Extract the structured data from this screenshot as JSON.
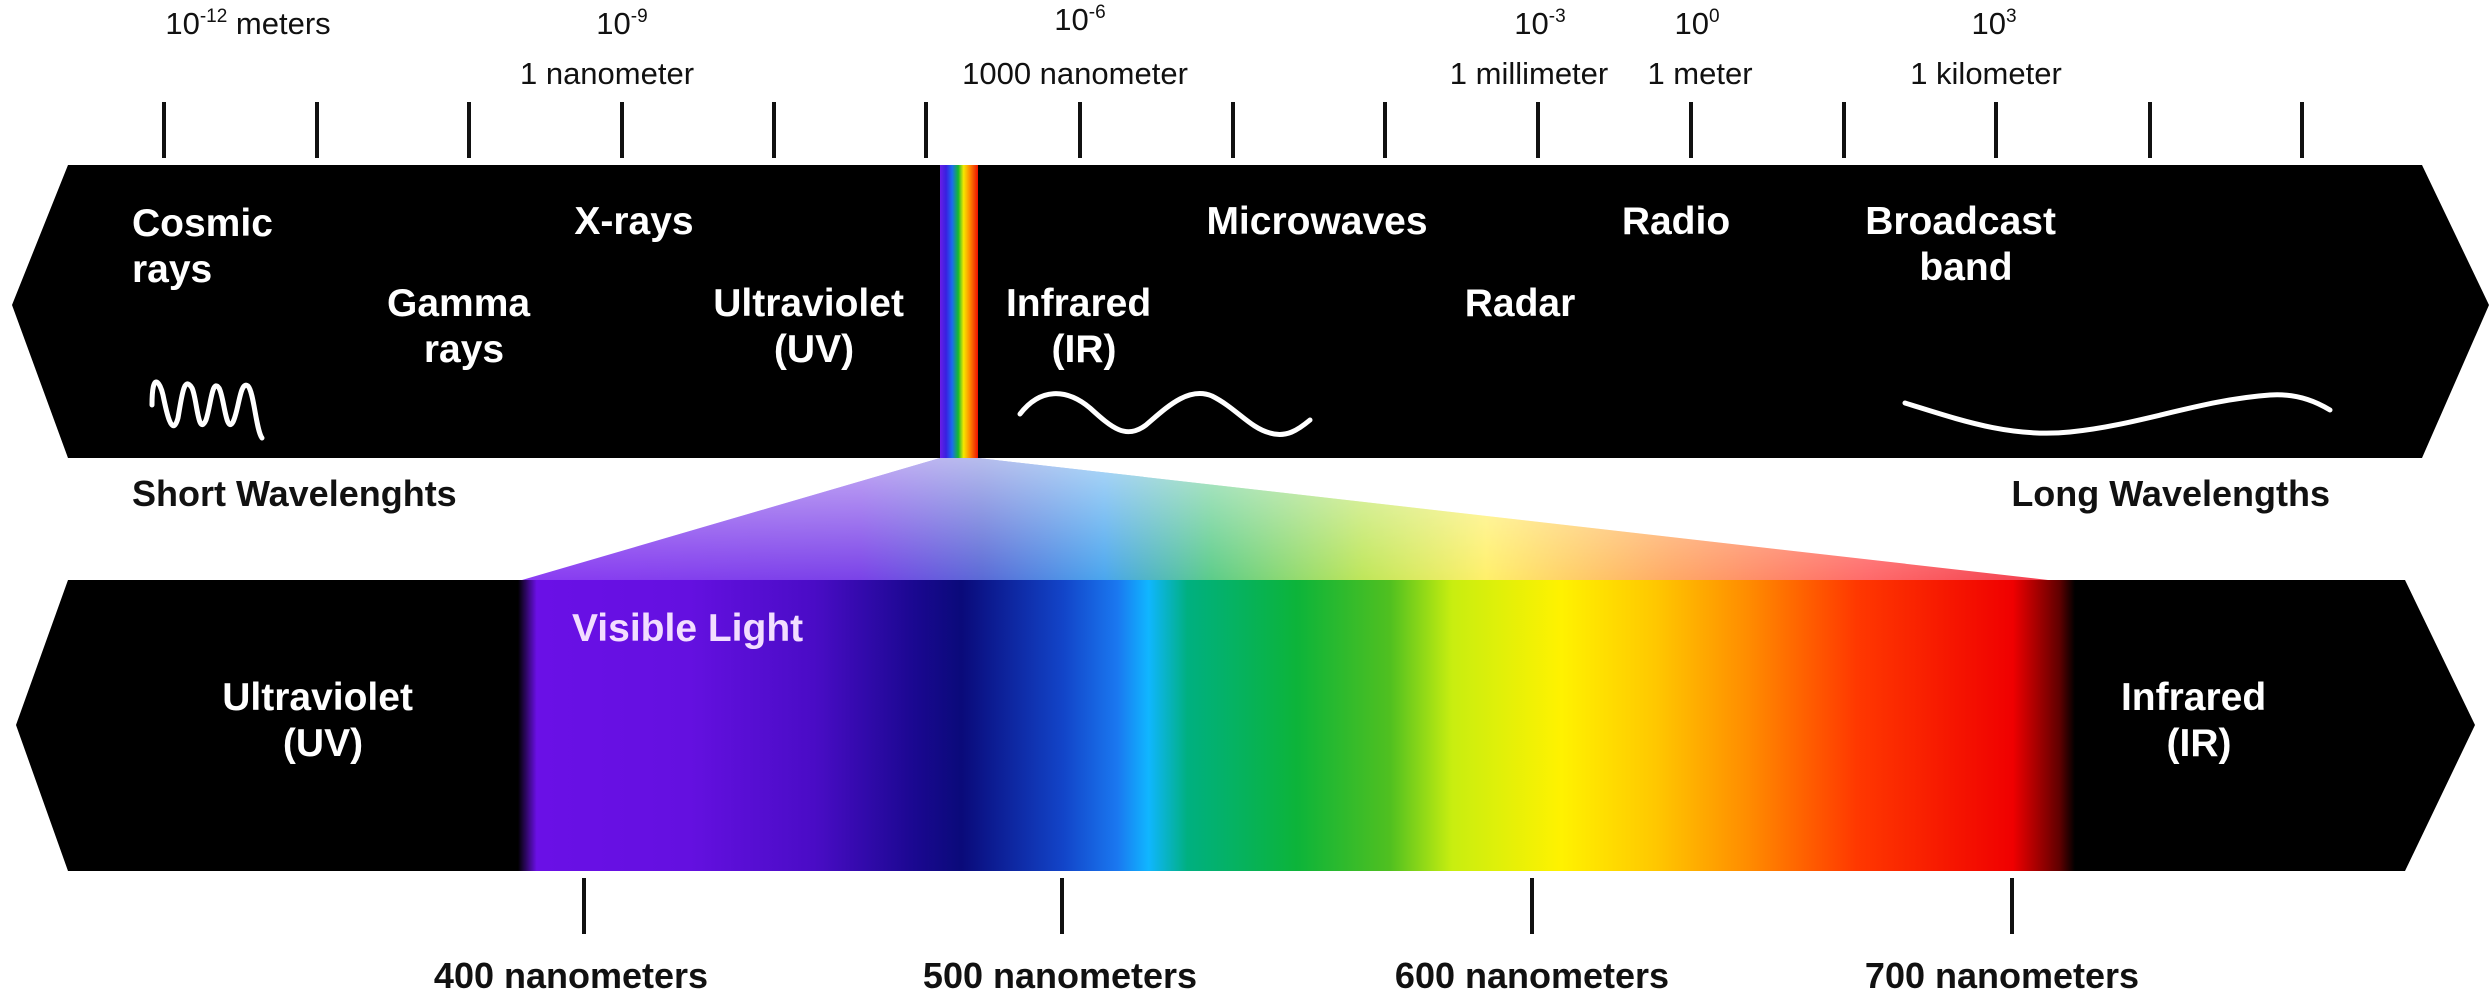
{
  "scale": {
    "powers": [
      {
        "base": "10",
        "exp": "-12",
        "unit": " meters"
      },
      {
        "base": "10",
        "exp": "-9",
        "unit": ""
      },
      {
        "base": "10",
        "exp": "-6",
        "unit": ""
      },
      {
        "base": "10",
        "exp": "-3",
        "unit": ""
      },
      {
        "base": "10",
        "exp": "0",
        "unit": ""
      },
      {
        "base": "10",
        "exp": "3",
        "unit": ""
      }
    ],
    "named": [
      "1 nanometer",
      "1000 nanometer",
      "1 millimeter",
      "1 meter",
      "1 kilometer"
    ],
    "tick_count": 15
  },
  "spectrum_bands": [
    {
      "line1": "Cosmic",
      "line2": "rays"
    },
    {
      "line1": "Gamma",
      "line2": "rays"
    },
    {
      "line1": "X-rays",
      "line2": ""
    },
    {
      "line1": "Ultraviolet",
      "line2": "(UV)"
    },
    {
      "line1": "Infrared",
      "line2": "(IR)"
    },
    {
      "line1": "Microwaves",
      "line2": ""
    },
    {
      "line1": "Radar",
      "line2": ""
    },
    {
      "line1": "Radio",
      "line2": ""
    },
    {
      "line1": "Broadcast",
      "line2": "band"
    }
  ],
  "wavelength_labels": {
    "short": "Short Wavelenghts",
    "long": "Long Wavelengths"
  },
  "visible": {
    "title": "Visible Light",
    "left": {
      "line1": "Ultraviolet",
      "line2": "(UV)"
    },
    "right": {
      "line1": "Infrared",
      "line2": "(IR)"
    },
    "nm_ticks": [
      "400 nanometers",
      "500 nanometers",
      "600 nanometers",
      "700 nanometers"
    ]
  },
  "colors": {
    "band_bg": "#000000",
    "text_light": "#ffffff",
    "text_dark": "#111111"
  }
}
